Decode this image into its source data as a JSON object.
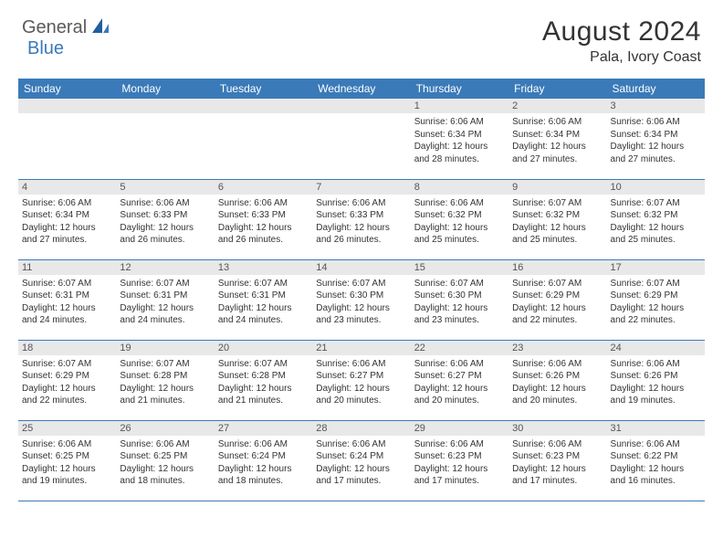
{
  "logo": {
    "part1": "General",
    "part2": "Blue"
  },
  "title": "August 2024",
  "location": "Pala, Ivory Coast",
  "colors": {
    "header_bg": "#3a7ab8",
    "header_text": "#ffffff",
    "daynum_bg": "#e8e8e8",
    "text": "#333333",
    "logo_gray": "#5a5a5a",
    "logo_blue": "#3a7ab8"
  },
  "days_of_week": [
    "Sunday",
    "Monday",
    "Tuesday",
    "Wednesday",
    "Thursday",
    "Friday",
    "Saturday"
  ],
  "weeks": [
    [
      {
        "n": "",
        "sr": "",
        "ss": "",
        "dl": ""
      },
      {
        "n": "",
        "sr": "",
        "ss": "",
        "dl": ""
      },
      {
        "n": "",
        "sr": "",
        "ss": "",
        "dl": ""
      },
      {
        "n": "",
        "sr": "",
        "ss": "",
        "dl": ""
      },
      {
        "n": "1",
        "sr": "Sunrise: 6:06 AM",
        "ss": "Sunset: 6:34 PM",
        "dl": "Daylight: 12 hours and 28 minutes."
      },
      {
        "n": "2",
        "sr": "Sunrise: 6:06 AM",
        "ss": "Sunset: 6:34 PM",
        "dl": "Daylight: 12 hours and 27 minutes."
      },
      {
        "n": "3",
        "sr": "Sunrise: 6:06 AM",
        "ss": "Sunset: 6:34 PM",
        "dl": "Daylight: 12 hours and 27 minutes."
      }
    ],
    [
      {
        "n": "4",
        "sr": "Sunrise: 6:06 AM",
        "ss": "Sunset: 6:34 PM",
        "dl": "Daylight: 12 hours and 27 minutes."
      },
      {
        "n": "5",
        "sr": "Sunrise: 6:06 AM",
        "ss": "Sunset: 6:33 PM",
        "dl": "Daylight: 12 hours and 26 minutes."
      },
      {
        "n": "6",
        "sr": "Sunrise: 6:06 AM",
        "ss": "Sunset: 6:33 PM",
        "dl": "Daylight: 12 hours and 26 minutes."
      },
      {
        "n": "7",
        "sr": "Sunrise: 6:06 AM",
        "ss": "Sunset: 6:33 PM",
        "dl": "Daylight: 12 hours and 26 minutes."
      },
      {
        "n": "8",
        "sr": "Sunrise: 6:06 AM",
        "ss": "Sunset: 6:32 PM",
        "dl": "Daylight: 12 hours and 25 minutes."
      },
      {
        "n": "9",
        "sr": "Sunrise: 6:07 AM",
        "ss": "Sunset: 6:32 PM",
        "dl": "Daylight: 12 hours and 25 minutes."
      },
      {
        "n": "10",
        "sr": "Sunrise: 6:07 AM",
        "ss": "Sunset: 6:32 PM",
        "dl": "Daylight: 12 hours and 25 minutes."
      }
    ],
    [
      {
        "n": "11",
        "sr": "Sunrise: 6:07 AM",
        "ss": "Sunset: 6:31 PM",
        "dl": "Daylight: 12 hours and 24 minutes."
      },
      {
        "n": "12",
        "sr": "Sunrise: 6:07 AM",
        "ss": "Sunset: 6:31 PM",
        "dl": "Daylight: 12 hours and 24 minutes."
      },
      {
        "n": "13",
        "sr": "Sunrise: 6:07 AM",
        "ss": "Sunset: 6:31 PM",
        "dl": "Daylight: 12 hours and 24 minutes."
      },
      {
        "n": "14",
        "sr": "Sunrise: 6:07 AM",
        "ss": "Sunset: 6:30 PM",
        "dl": "Daylight: 12 hours and 23 minutes."
      },
      {
        "n": "15",
        "sr": "Sunrise: 6:07 AM",
        "ss": "Sunset: 6:30 PM",
        "dl": "Daylight: 12 hours and 23 minutes."
      },
      {
        "n": "16",
        "sr": "Sunrise: 6:07 AM",
        "ss": "Sunset: 6:29 PM",
        "dl": "Daylight: 12 hours and 22 minutes."
      },
      {
        "n": "17",
        "sr": "Sunrise: 6:07 AM",
        "ss": "Sunset: 6:29 PM",
        "dl": "Daylight: 12 hours and 22 minutes."
      }
    ],
    [
      {
        "n": "18",
        "sr": "Sunrise: 6:07 AM",
        "ss": "Sunset: 6:29 PM",
        "dl": "Daylight: 12 hours and 22 minutes."
      },
      {
        "n": "19",
        "sr": "Sunrise: 6:07 AM",
        "ss": "Sunset: 6:28 PM",
        "dl": "Daylight: 12 hours and 21 minutes."
      },
      {
        "n": "20",
        "sr": "Sunrise: 6:07 AM",
        "ss": "Sunset: 6:28 PM",
        "dl": "Daylight: 12 hours and 21 minutes."
      },
      {
        "n": "21",
        "sr": "Sunrise: 6:06 AM",
        "ss": "Sunset: 6:27 PM",
        "dl": "Daylight: 12 hours and 20 minutes."
      },
      {
        "n": "22",
        "sr": "Sunrise: 6:06 AM",
        "ss": "Sunset: 6:27 PM",
        "dl": "Daylight: 12 hours and 20 minutes."
      },
      {
        "n": "23",
        "sr": "Sunrise: 6:06 AM",
        "ss": "Sunset: 6:26 PM",
        "dl": "Daylight: 12 hours and 20 minutes."
      },
      {
        "n": "24",
        "sr": "Sunrise: 6:06 AM",
        "ss": "Sunset: 6:26 PM",
        "dl": "Daylight: 12 hours and 19 minutes."
      }
    ],
    [
      {
        "n": "25",
        "sr": "Sunrise: 6:06 AM",
        "ss": "Sunset: 6:25 PM",
        "dl": "Daylight: 12 hours and 19 minutes."
      },
      {
        "n": "26",
        "sr": "Sunrise: 6:06 AM",
        "ss": "Sunset: 6:25 PM",
        "dl": "Daylight: 12 hours and 18 minutes."
      },
      {
        "n": "27",
        "sr": "Sunrise: 6:06 AM",
        "ss": "Sunset: 6:24 PM",
        "dl": "Daylight: 12 hours and 18 minutes."
      },
      {
        "n": "28",
        "sr": "Sunrise: 6:06 AM",
        "ss": "Sunset: 6:24 PM",
        "dl": "Daylight: 12 hours and 17 minutes."
      },
      {
        "n": "29",
        "sr": "Sunrise: 6:06 AM",
        "ss": "Sunset: 6:23 PM",
        "dl": "Daylight: 12 hours and 17 minutes."
      },
      {
        "n": "30",
        "sr": "Sunrise: 6:06 AM",
        "ss": "Sunset: 6:23 PM",
        "dl": "Daylight: 12 hours and 17 minutes."
      },
      {
        "n": "31",
        "sr": "Sunrise: 6:06 AM",
        "ss": "Sunset: 6:22 PM",
        "dl": "Daylight: 12 hours and 16 minutes."
      }
    ]
  ]
}
